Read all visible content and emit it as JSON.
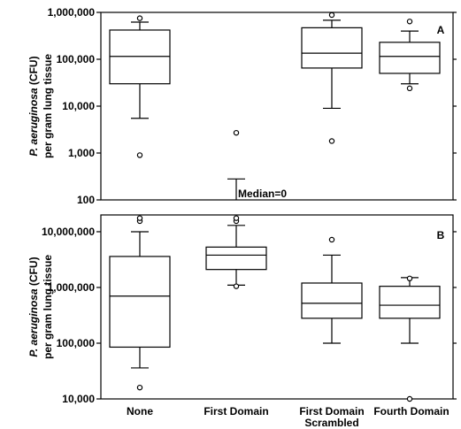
{
  "chart_data": [
    {
      "type": "box",
      "panel_label": "A",
      "ylabel_italic": "P. aeruginosa",
      "ylabel_rest": " (CFU)",
      "ylabel_line2": "per gram lung tissue",
      "yscale": "log",
      "ylim": [
        100,
        1000000
      ],
      "yticks": [
        {
          "value": 100,
          "label": "100"
        },
        {
          "value": 1000,
          "label": "1,000"
        },
        {
          "value": 10000,
          "label": "10,000"
        },
        {
          "value": 100000,
          "label": "100,000"
        },
        {
          "value": 1000000,
          "label": "1,000,000"
        }
      ],
      "categories": [
        "None",
        "First Domain",
        "First Domain Scrambled",
        "Fourth Domain"
      ],
      "boxes": [
        {
          "category": "None",
          "whisker_low": 5500,
          "q1": 30000,
          "median": 115000,
          "q3": 420000,
          "whisker_high": 620000,
          "outliers": [
            900,
            750000
          ]
        },
        {
          "category": "First Domain",
          "whisker_low": null,
          "q1": null,
          "median": null,
          "q3": null,
          "whisker_high": 280,
          "outliers": [
            2700
          ]
        },
        {
          "category": "First Domain Scrambled",
          "whisker_low": 9000,
          "q1": 65000,
          "median": 135000,
          "q3": 470000,
          "whisker_high": 680000,
          "outliers": [
            1800,
            880000
          ]
        },
        {
          "category": "Fourth Domain",
          "whisker_low": 30000,
          "q1": 50000,
          "median": 115000,
          "q3": 230000,
          "whisker_high": 400000,
          "outliers": [
            24000,
            640000
          ]
        }
      ],
      "annotations": [
        {
          "category": "First Domain",
          "text": "Median=0"
        }
      ]
    },
    {
      "type": "box",
      "panel_label": "B",
      "ylabel_italic": "P. aeruginosa",
      "ylabel_rest": " (CFU)",
      "ylabel_line2": "per gram lung tissue",
      "yscale": "log",
      "ylim": [
        10000,
        20000000
      ],
      "yticks": [
        {
          "value": 10000,
          "label": "10,000"
        },
        {
          "value": 100000,
          "label": "100,000"
        },
        {
          "value": 1000000,
          "label": "1,000,000"
        },
        {
          "value": 10000000,
          "label": "10,000,000"
        }
      ],
      "categories": [
        "None",
        "First Domain",
        "First Domain Scrambled",
        "Fourth Domain"
      ],
      "boxes": [
        {
          "category": "None",
          "whisker_low": 36000,
          "q1": 85000,
          "median": 700000,
          "q3": 3600000,
          "whisker_high": 10000000,
          "outliers": [
            16000,
            15500000,
            17500000
          ]
        },
        {
          "category": "First Domain",
          "whisker_low": 1100000,
          "q1": 2100000,
          "median": 3800000,
          "q3": 5300000,
          "whisker_high": 13000000,
          "outliers": [
            1050000,
            15500000,
            17500000
          ]
        },
        {
          "category": "First Domain Scrambled",
          "whisker_low": 100000,
          "q1": 280000,
          "median": 520000,
          "q3": 1200000,
          "whisker_high": 3800000,
          "outliers": [
            7200000
          ]
        },
        {
          "category": "Fourth Domain",
          "whisker_low": 100000,
          "q1": 280000,
          "median": 480000,
          "q3": 1050000,
          "whisker_high": 1500000,
          "outliers": [
            10000,
            1450000
          ]
        }
      ]
    }
  ],
  "x_tick_labels": [
    {
      "category": "None",
      "lines": [
        "None"
      ]
    },
    {
      "category": "First Domain",
      "lines": [
        "First Domain"
      ]
    },
    {
      "category": "First Domain Scrambled",
      "lines": [
        "First Domain",
        "Scrambled"
      ]
    },
    {
      "category": "Fourth Domain",
      "lines": [
        "Fourth Domain"
      ]
    }
  ]
}
